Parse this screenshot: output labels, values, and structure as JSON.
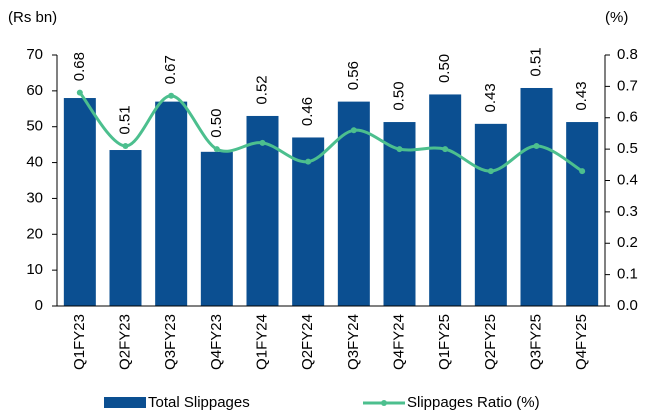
{
  "chart_data": {
    "type": "bar_line",
    "y_label": "(Rs bn)",
    "y2_label": "(%)",
    "categories": [
      "Q1FY23",
      "Q2FY23",
      "Q3FY23",
      "Q4FY23",
      "Q1FY24",
      "Q2FY24",
      "Q3FY24",
      "Q4FY24",
      "Q1FY25",
      "Q2FY25",
      "Q3FY25",
      "Q4FY25"
    ],
    "series": [
      {
        "name": "Total Slippages",
        "type": "bar",
        "color": "#0b4f91",
        "values": [
          58,
          43.5,
          57,
          43,
          53,
          47,
          57,
          51.3,
          59,
          50.8,
          60.8,
          51.3
        ]
      },
      {
        "name": "Slippages Ratio (%)",
        "type": "line",
        "axis": "y2",
        "color": "#4cbf8e",
        "values": [
          0.68,
          0.51,
          0.67,
          0.5,
          0.52,
          0.46,
          0.56,
          0.5,
          0.5,
          0.43,
          0.51,
          0.43
        ],
        "value_labels": [
          "0.68",
          "0.51",
          "0.67",
          "0.50",
          "0.52",
          "0.46",
          "0.56",
          "0.50",
          "0.50",
          "0.43",
          "0.51",
          "0.43"
        ]
      }
    ],
    "ylim": [
      0,
      70
    ],
    "yticks": [
      0,
      10,
      20,
      30,
      40,
      50,
      60,
      70
    ],
    "y2lim": [
      0,
      0.8
    ],
    "y2ticks": [
      {
        "value": 0,
        "label": "0.0"
      },
      0.1,
      0.2,
      0.3,
      0.4,
      0.5,
      0.6,
      0.7,
      0.8
    ],
    "legend": "bottom"
  }
}
